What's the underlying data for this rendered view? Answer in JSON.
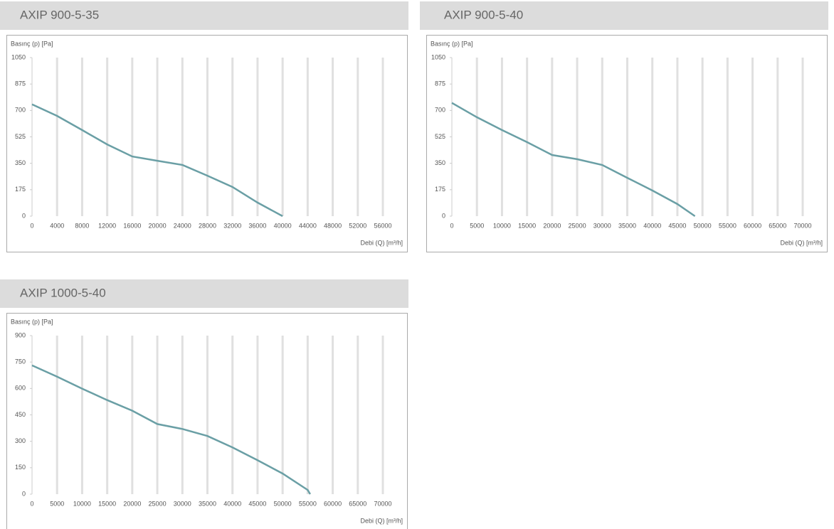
{
  "chart_data": [
    {
      "type": "line",
      "title": "AXIP 900-5-35",
      "y_label": "Basınç (p) [Pa]",
      "x_label": "Debi (Q) [m³/h]",
      "x": [
        0,
        4000,
        8000,
        12000,
        16000,
        20000,
        24000,
        28000,
        32000,
        36000,
        40000
      ],
      "values": [
        740,
        664,
        570,
        475,
        395,
        367,
        339,
        268,
        193,
        90,
        0
      ],
      "color": "#6a9fa5",
      "xlim": [
        0,
        56000
      ],
      "ylim": [
        0,
        1050
      ],
      "xticks": [
        0,
        4000,
        8000,
        12000,
        16000,
        20000,
        24000,
        28000,
        32000,
        36000,
        40000,
        44000,
        48000,
        52000,
        56000
      ],
      "yticks": [
        0,
        175,
        350,
        525,
        700,
        875,
        1050
      ],
      "grid": true
    },
    {
      "type": "line",
      "title": "AXIP 900-5-40",
      "y_label": "Basınç (p) [Pa]",
      "x_label": "Debi (Q) [m³/h]",
      "x": [
        0,
        5000,
        10000,
        15000,
        20000,
        25000,
        30000,
        35000,
        40000,
        45000,
        48500
      ],
      "values": [
        750,
        655,
        570,
        490,
        405,
        377,
        339,
        254,
        170,
        80,
        0
      ],
      "color": "#6a9fa5",
      "xlim": [
        0,
        70000
      ],
      "ylim": [
        0,
        1050
      ],
      "xticks": [
        0,
        5000,
        10000,
        15000,
        20000,
        25000,
        30000,
        35000,
        40000,
        45000,
        50000,
        55000,
        60000,
        65000,
        70000
      ],
      "yticks": [
        0,
        175,
        350,
        525,
        700,
        875,
        1050
      ],
      "grid": true
    },
    {
      "type": "line",
      "title": "AXIP 1000-5-40",
      "y_label": "Basınç (p) [Pa]",
      "x_label": "Debi (Q) [m³/h]",
      "x": [
        0,
        5000,
        10000,
        15000,
        20000,
        25000,
        30000,
        35000,
        40000,
        45000,
        50000,
        55000,
        55500
      ],
      "values": [
        731,
        667,
        599,
        534,
        474,
        398,
        370,
        330,
        265,
        193,
        117,
        24,
        0
      ],
      "color": "#6a9fa5",
      "xlim": [
        0,
        70000
      ],
      "ylim": [
        0,
        900
      ],
      "xticks": [
        0,
        5000,
        10000,
        15000,
        20000,
        25000,
        30000,
        35000,
        40000,
        45000,
        50000,
        55000,
        60000,
        65000,
        70000
      ],
      "yticks": [
        0,
        150,
        300,
        450,
        600,
        750,
        900
      ],
      "grid": true
    }
  ]
}
